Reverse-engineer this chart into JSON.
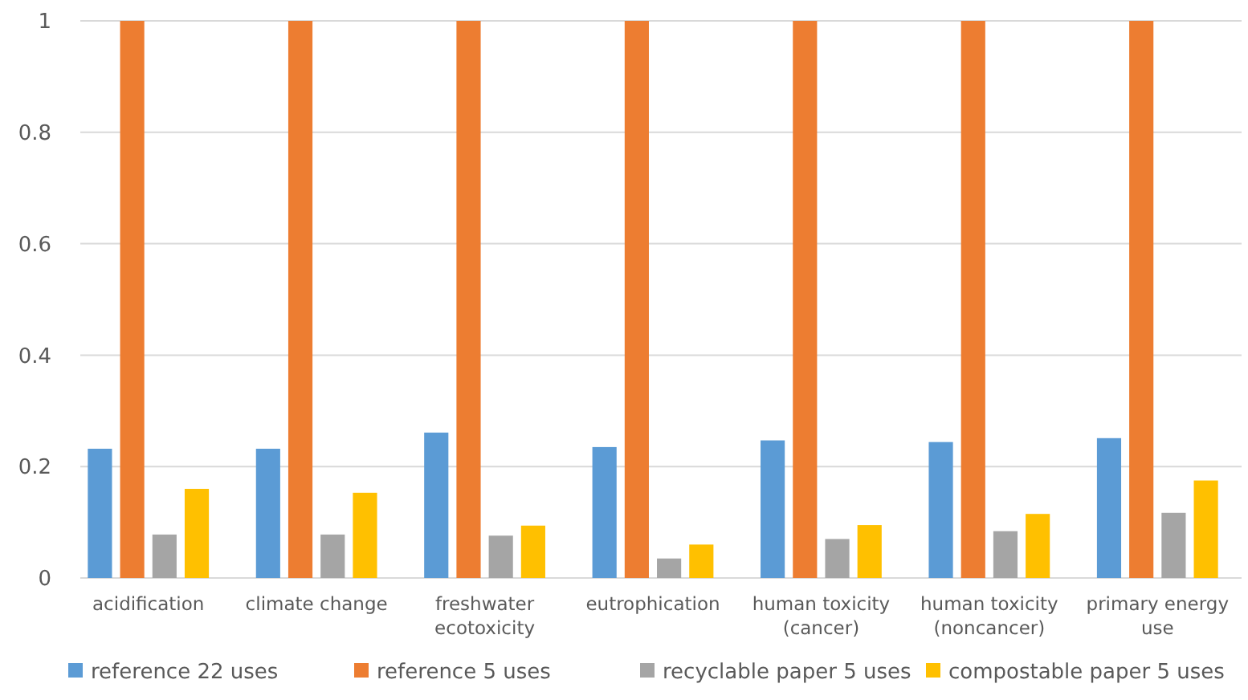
{
  "chart_data": {
    "type": "bar",
    "categories": [
      "acidification",
      "climate change",
      "freshwater ecotoxicity",
      "eutrophication",
      "human toxicity (cancer)",
      "human toxicity (noncancer)",
      "primary energy use"
    ],
    "series": [
      {
        "name": "reference 22 uses",
        "color": "#5b9bd5",
        "values": [
          0.232,
          0.232,
          0.261,
          0.235,
          0.247,
          0.244,
          0.251
        ]
      },
      {
        "name": "reference 5 uses",
        "color": "#ed7d31",
        "values": [
          1,
          1,
          1,
          1,
          1,
          1,
          1
        ]
      },
      {
        "name": "recyclable paper 5 uses",
        "color": "#a5a5a5",
        "values": [
          0.078,
          0.078,
          0.076,
          0.035,
          0.07,
          0.084,
          0.117
        ]
      },
      {
        "name": "compostable paper 5 uses",
        "color": "#ffc000",
        "values": [
          0.16,
          0.153,
          0.094,
          0.06,
          0.095,
          0.115,
          0.175
        ]
      }
    ],
    "ylim": [
      0,
      1
    ],
    "yticks": [
      0,
      0.2,
      0.4,
      0.6,
      0.8,
      1
    ],
    "grid": "y",
    "legend": "bottom"
  }
}
